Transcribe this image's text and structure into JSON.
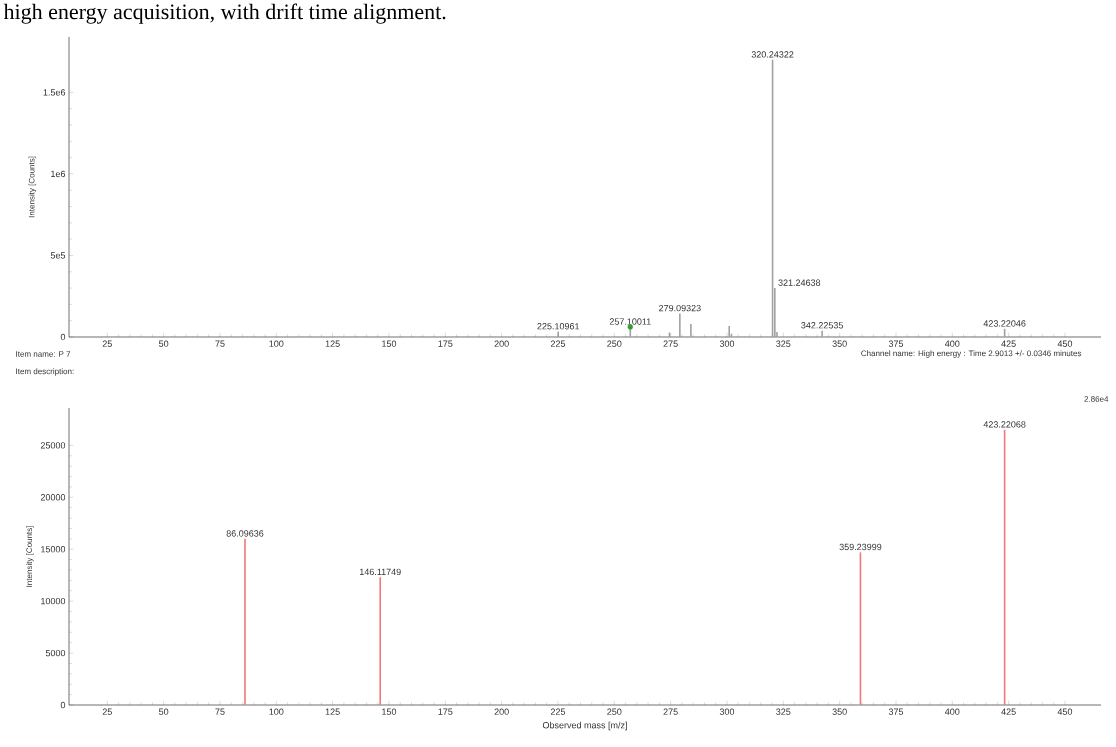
{
  "chart_data": [
    {
      "type": "bar",
      "title": "high energy acquisition, with drift time alignment.",
      "ylabel": "Intensity [Counts]",
      "xlim": [
        8,
        466
      ],
      "xticks": [
        25,
        50,
        75,
        100,
        125,
        150,
        175,
        200,
        225,
        250,
        275,
        300,
        325,
        350,
        375,
        400,
        425,
        450
      ],
      "ylim": [
        0,
        1840000
      ],
      "yticks": [
        0,
        {
          "value": 500000,
          "label": "5e5"
        },
        {
          "value": 1000000,
          "label": "1e6"
        },
        {
          "value": 1500000,
          "label": "1.5e6"
        }
      ],
      "annotations": [
        {
          "text": "225.10961",
          "x": 225.10961,
          "y": 33000
        },
        {
          "text": "257.10011",
          "x": 257.10011,
          "y": 62000
        },
        {
          "text": "279.09323",
          "x": 279.09323,
          "y": 144000
        },
        {
          "text": "320.24322",
          "x": 320.24322,
          "y": 1700000
        },
        {
          "text": "321.24638",
          "x": 321.24638,
          "y": 300000
        },
        {
          "text": "342.22535",
          "x": 342.22535,
          "y": 39000
        },
        {
          "text": "423.22046",
          "x": 423.22046,
          "y": 50000
        }
      ],
      "series": [
        {
          "color": "#a0a0a0",
          "x": [
            225.10961,
            257.10011,
            274.5,
            279.09323,
            284,
            301,
            302,
            320.24322,
            321.24638,
            322.2,
            342.22535,
            423.22046
          ],
          "values": [
            33000,
            62000,
            27000,
            144000,
            80000,
            68000,
            20000,
            1700000,
            300000,
            30000,
            39000,
            50000
          ]
        },
        {
          "type": "scatter",
          "color": "#2ca02c",
          "x": [
            257.10011
          ],
          "values": [
            62000
          ]
        }
      ]
    },
    {
      "type": "bar",
      "ylabel": "Intensity [Counts]",
      "xlabel": "Observed mass [m/z]",
      "xlim": [
        8,
        466
      ],
      "xticks": [
        25,
        50,
        75,
        100,
        125,
        150,
        175,
        200,
        225,
        250,
        275,
        300,
        325,
        350,
        375,
        400,
        425,
        450
      ],
      "ylim": [
        0,
        28600
      ],
      "yticks": [
        0,
        5000,
        10000,
        15000,
        20000,
        25000
      ],
      "annotations": [
        "Item name: P 7",
        "Item description:",
        "Channel name: High energy : Time 2.9013 +/- 0.0346 minutes",
        "2.86e4",
        {
          "text": "86.09636",
          "x": 86.09636,
          "y": 16000
        },
        {
          "text": "146.11749",
          "x": 146.11749,
          "y": 12300
        },
        {
          "text": "359.23999",
          "x": 359.23999,
          "y": 14700
        },
        {
          "text": "423.22068",
          "x": 423.22068,
          "y": 26500
        }
      ],
      "series": [
        {
          "color": "#f07878",
          "x": [
            86.09636,
            146.11749,
            359.23999,
            423.22068
          ],
          "values": [
            16000,
            12300,
            14700,
            26500
          ]
        }
      ]
    }
  ]
}
